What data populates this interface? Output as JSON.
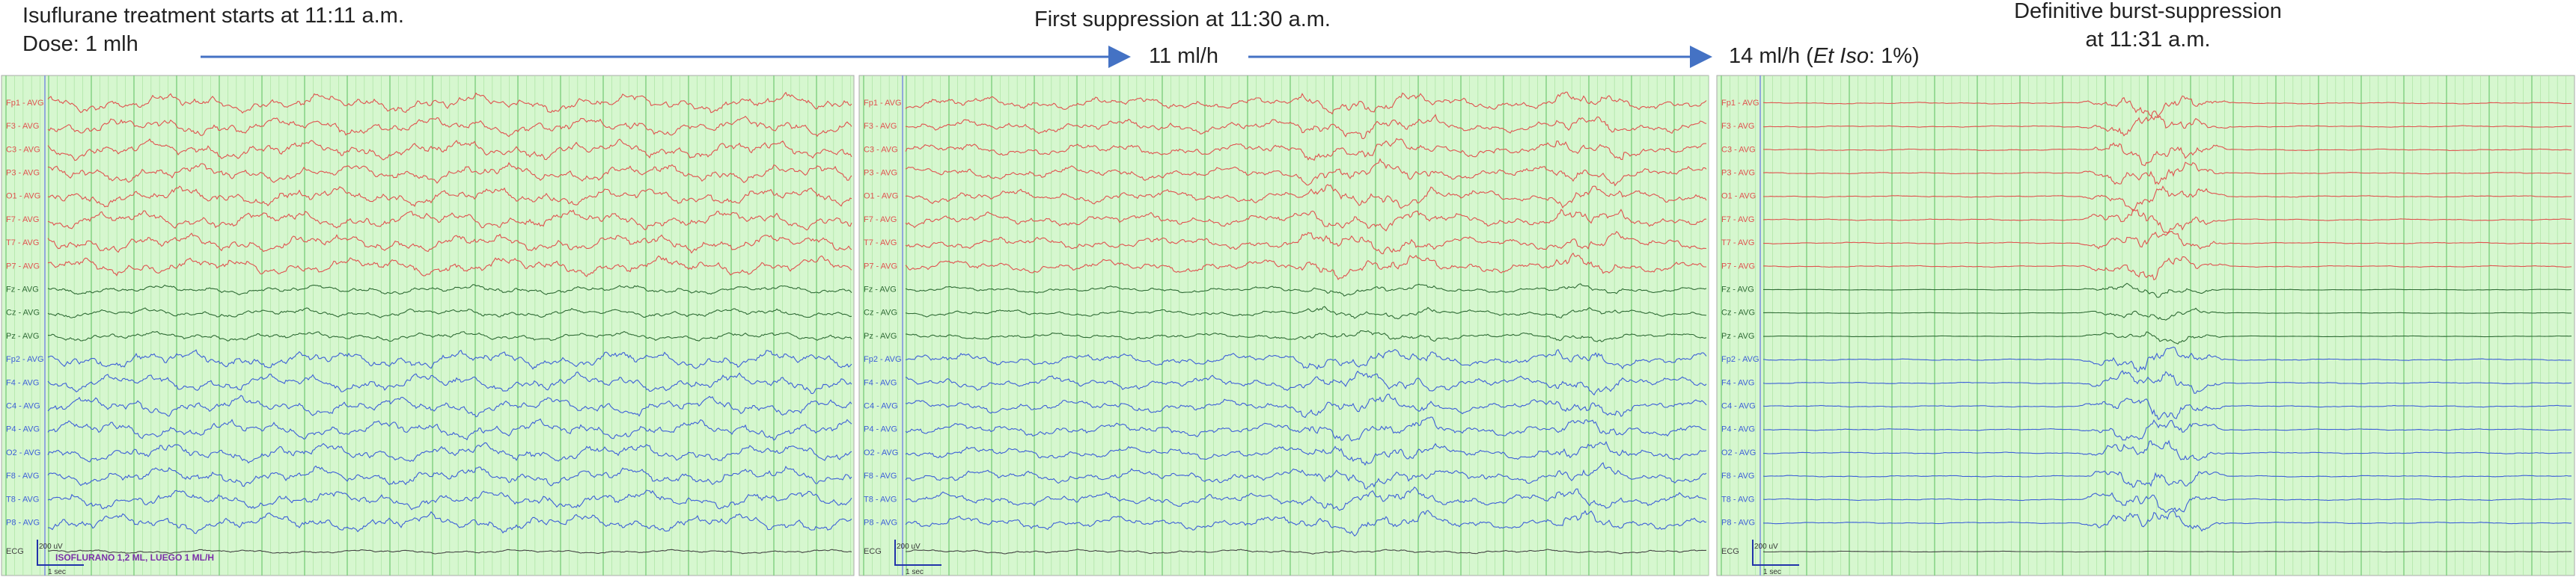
{
  "header": {
    "left_title": "Isuflurane treatment starts at 11:11 a.m.",
    "left_dose": "Dose: 1 mlh",
    "middle_title": "First suppression at 11:30 a.m.",
    "middle_dose": "11 ml/h",
    "right_dose": {
      "before": "14 ml/h (",
      "italic": "Et Iso",
      "after": ": 1%)"
    },
    "right_title_1": "Definitive burst-suppression",
    "right_title_2": "at 11:31 a.m."
  },
  "panels": [
    {
      "channels": [
        "Fp1 - AVG",
        "F3 - AVG",
        "C3 - AVG",
        "P3 - AVG",
        "O1 - AVG",
        "F7 - AVG",
        "T7 - AVG",
        "P7 - AVG",
        "Fz - AVG",
        "Cz - AVG",
        "Pz - AVG",
        "Fp2 - AVG",
        "F4 - AVG",
        "C4 - AVG",
        "P4 - AVG",
        "O2 - AVG",
        "F8 - AVG",
        "T8 - AVG",
        "P8 - AVG",
        "ECG"
      ],
      "amplitude_scale": "200 uV",
      "time_scale": "1 sec",
      "event_note": "ISOFLURANO 1,2 ML, LUEGO 1 ML/H"
    },
    {
      "channels": [
        "Fp1 - AVG",
        "F3 - AVG",
        "C3 - AVG",
        "P3 - AVG",
        "O1 - AVG",
        "F7 - AVG",
        "T7 - AVG",
        "P7 - AVG",
        "Fz - AVG",
        "Cz - AVG",
        "Pz - AVG",
        "Fp2 - AVG",
        "F4 - AVG",
        "C4 - AVG",
        "P4 - AVG",
        "O2 - AVG",
        "F8 - AVG",
        "T8 - AVG",
        "P8 - AVG",
        "ECG"
      ],
      "amplitude_scale": "200 uV",
      "time_scale": "1 sec"
    },
    {
      "channels": [
        "Fp1 - AVG",
        "F3 - AVG",
        "C3 - AVG",
        "P3 - AVG",
        "O1 - AVG",
        "F7 - AVG",
        "T7 - AVG",
        "P7 - AVG",
        "Fz - AVG",
        "Cz - AVG",
        "Pz - AVG",
        "Fp2 - AVG",
        "F4 - AVG",
        "C4 - AVG",
        "P4 - AVG",
        "O2 - AVG",
        "F8 - AVG",
        "T8 - AVG",
        "P8 - AVG",
        "ECG"
      ],
      "amplitude_scale": "200 uV",
      "time_scale": "1 sec"
    }
  ]
}
